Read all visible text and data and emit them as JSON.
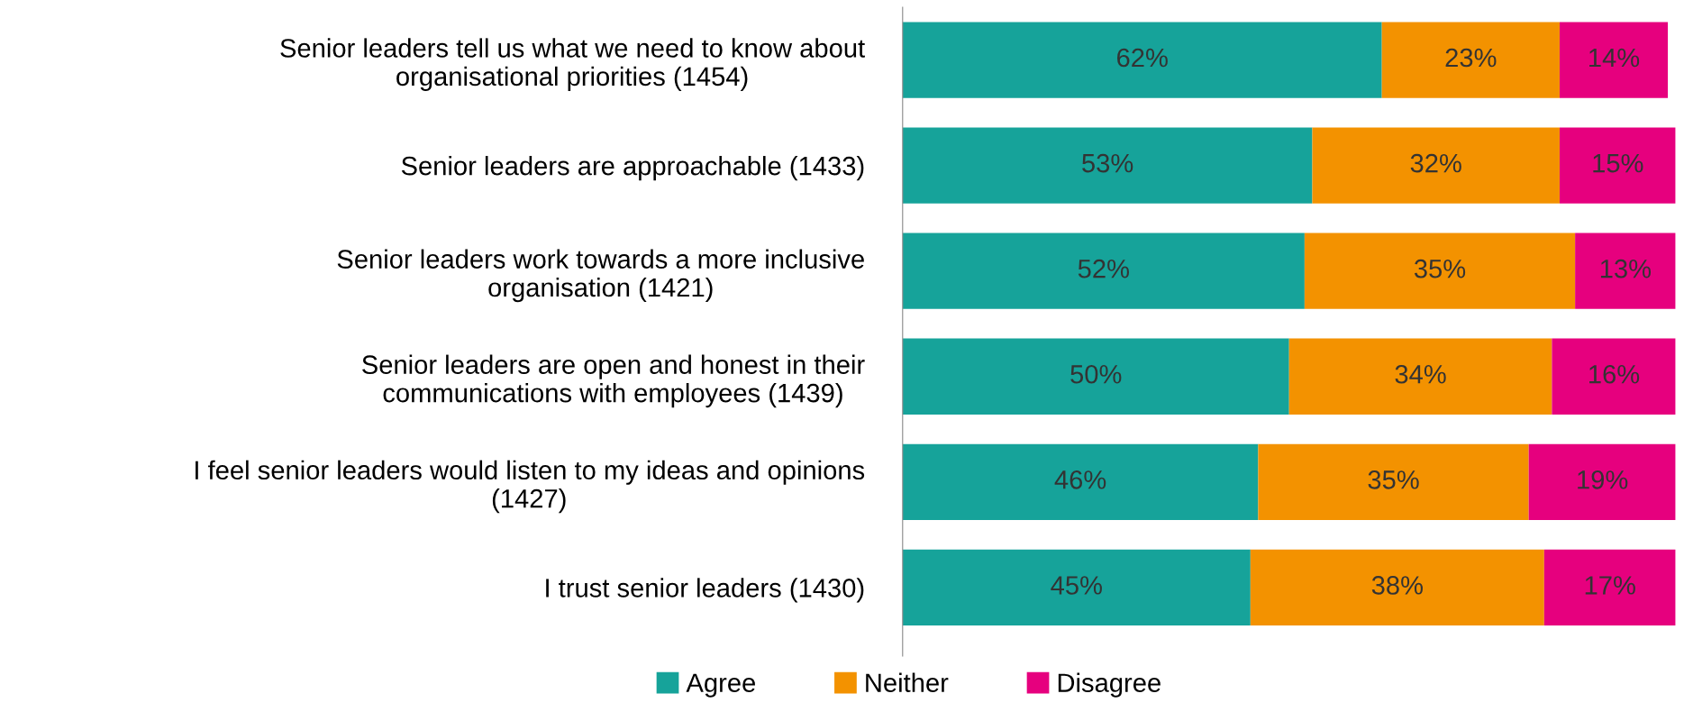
{
  "chart_data": {
    "type": "bar",
    "orientation": "horizontal",
    "stacked": true,
    "categories": [
      "Senior leaders tell us what we need to know about\norganisational priorities (1454)",
      "Senior leaders are approachable (1433)",
      "Senior leaders work towards a more inclusive\norganisation (1421)",
      "Senior leaders are open and honest in their\ncommunications with employees (1439)",
      "I feel senior leaders would listen to my ideas and opinions\n(1427)",
      "I trust senior leaders (1430)"
    ],
    "series": [
      {
        "name": "Agree",
        "color": "#16a39a",
        "values": [
          62,
          53,
          52,
          50,
          46,
          45
        ],
        "value_labels": [
          "62%",
          "53%",
          "52%",
          "50%",
          "46%",
          "45%"
        ]
      },
      {
        "name": "Neither",
        "color": "#f39200",
        "values": [
          23,
          32,
          35,
          34,
          35,
          38
        ],
        "value_labels": [
          "23%",
          "32%",
          "35%",
          "34%",
          "35%",
          "38%"
        ]
      },
      {
        "name": "Disagree",
        "color": "#e6007e",
        "values": [
          14,
          15,
          13,
          16,
          19,
          17
        ],
        "value_labels": [
          "14%",
          "15%",
          "13%",
          "16%",
          "19%",
          "17%"
        ]
      }
    ],
    "tick_labels": "y",
    "grid": false,
    "legend": "bottom"
  }
}
